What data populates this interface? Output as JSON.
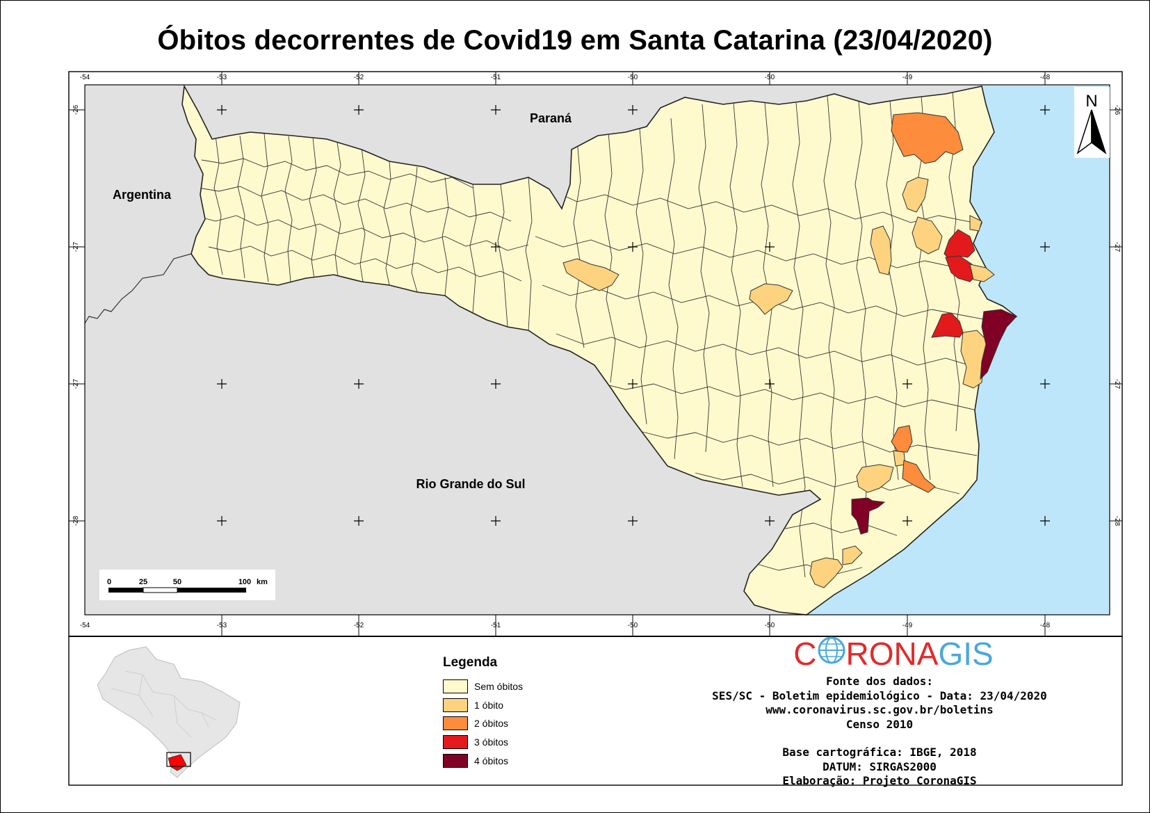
{
  "title": "Óbitos decorrentes de Covid19 em Santa Catarina (23/04/2020)",
  "map": {
    "neighbors": [
      "Paraná",
      "Argentina",
      "Rio Grande do Sul"
    ],
    "north_label": "N",
    "lon_ticks": [
      "-54",
      "-53",
      "-52",
      "-51",
      "-50",
      "-50",
      "-49",
      "-48"
    ],
    "lat_ticks": [
      "-26",
      "-27",
      "-27",
      "-28"
    ],
    "scale_bar": [
      "0",
      "25",
      "50",
      "100",
      "km"
    ],
    "colors": {
      "land": "#fffacd",
      "neighbor": "#e1e1e1",
      "ocean": "#bee6fa",
      "border": "#222222"
    }
  },
  "legend": {
    "title": "Legenda",
    "items": [
      {
        "label": "Sem óbitos",
        "color": "#fffacd"
      },
      {
        "label": "1 óbito",
        "color": "#fdd380"
      },
      {
        "label": "2 óbitos",
        "color": "#fd8c3c"
      },
      {
        "label": "3 óbitos",
        "color": "#e31a1c"
      },
      {
        "label": "4 óbitos",
        "color": "#800026"
      }
    ]
  },
  "logo": {
    "part1": "C",
    "part2": "RONA",
    "part3": "GIS"
  },
  "credits": [
    "Fonte dos dados:",
    "SES/SC - Boletim epidemiológico - Data: 23/04/2020",
    "www.coronavirus.sc.gov.br/boletins",
    "Censo 2010",
    "",
    "Base cartográfica: IBGE, 2018",
    "DATUM: SIRGAS2000",
    "Elaboração: Projeto CoronaGIS"
  ]
}
